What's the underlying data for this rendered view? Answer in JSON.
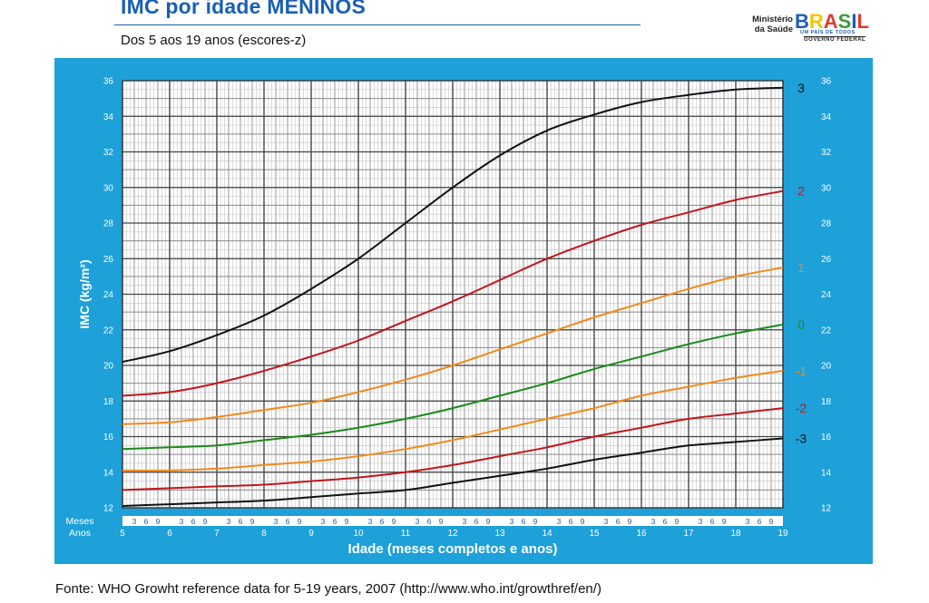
{
  "header": {
    "title": "IMC por idade MENINOS",
    "subtitle": "Dos 5 aos 19 anos (escores-z)"
  },
  "logo": {
    "ministry_line1": "Ministério",
    "ministry_line2": "da Saúde",
    "brand_letters": [
      "B",
      "R",
      "A",
      "S",
      "I",
      "L"
    ],
    "brand_colors": [
      "#1a5fb4",
      "#f5c400",
      "#e03a2f",
      "#3a9a3a",
      "#1a5fb4",
      "#e03a2f"
    ],
    "slogan": "UM PAÍS DE TODOS",
    "government": "GOVERNO FEDERAL"
  },
  "footer": {
    "source": "Fonte: WHO Growht reference data for 5-19 years, 2007 (http://www.who.int/growthref/en/)"
  },
  "chart_data": {
    "type": "line",
    "xlabel": "Idade (meses completos e anos)",
    "ylabel": "IMC (kg/m²)",
    "row_label_months": "Meses",
    "row_label_years": "Anos",
    "xlim": [
      5,
      19
    ],
    "ylim": [
      12,
      36
    ],
    "yticks": [
      12,
      14,
      16,
      18,
      20,
      22,
      24,
      26,
      28,
      30,
      32,
      34,
      36
    ],
    "year_ticks": [
      5,
      6,
      7,
      8,
      9,
      10,
      11,
      12,
      13,
      14,
      15,
      16,
      17,
      18,
      19
    ],
    "month_ticks": [
      "3",
      "6",
      "9"
    ],
    "grid": true,
    "x": [
      5,
      6,
      7,
      8,
      9,
      10,
      11,
      12,
      13,
      14,
      15,
      16,
      17,
      18,
      19
    ],
    "series": [
      {
        "name": "3",
        "color": "#111111",
        "values": [
          20.2,
          20.8,
          21.7,
          22.8,
          24.3,
          26.0,
          28.0,
          30.0,
          31.8,
          33.2,
          34.1,
          34.8,
          35.2,
          35.5,
          35.6
        ]
      },
      {
        "name": "2",
        "color": "#c0161b",
        "values": [
          18.3,
          18.5,
          19.0,
          19.7,
          20.5,
          21.4,
          22.5,
          23.6,
          24.8,
          26.0,
          27.0,
          27.9,
          28.6,
          29.3,
          29.8
        ]
      },
      {
        "name": "1",
        "color": "#f08a1c",
        "values": [
          16.7,
          16.8,
          17.1,
          17.5,
          17.9,
          18.5,
          19.2,
          20.0,
          20.9,
          21.8,
          22.7,
          23.5,
          24.3,
          25.0,
          25.5
        ]
      },
      {
        "name": "0",
        "color": "#1a8a1a",
        "values": [
          15.3,
          15.4,
          15.5,
          15.8,
          16.1,
          16.5,
          17.0,
          17.6,
          18.3,
          19.0,
          19.8,
          20.5,
          21.2,
          21.8,
          22.3
        ]
      },
      {
        "name": "-1",
        "color": "#f08a1c",
        "values": [
          14.1,
          14.1,
          14.2,
          14.4,
          14.6,
          14.9,
          15.3,
          15.8,
          16.4,
          17.0,
          17.6,
          18.3,
          18.8,
          19.3,
          19.7
        ]
      },
      {
        "name": "-2",
        "color": "#c0161b",
        "values": [
          13.0,
          13.1,
          13.2,
          13.3,
          13.5,
          13.7,
          14.0,
          14.4,
          14.9,
          15.4,
          16.0,
          16.5,
          17.0,
          17.3,
          17.6
        ]
      },
      {
        "name": "-3",
        "color": "#111111",
        "values": [
          12.1,
          12.2,
          12.3,
          12.4,
          12.6,
          12.8,
          13.0,
          13.4,
          13.8,
          14.2,
          14.7,
          15.1,
          15.5,
          15.7,
          15.9
        ]
      }
    ]
  }
}
